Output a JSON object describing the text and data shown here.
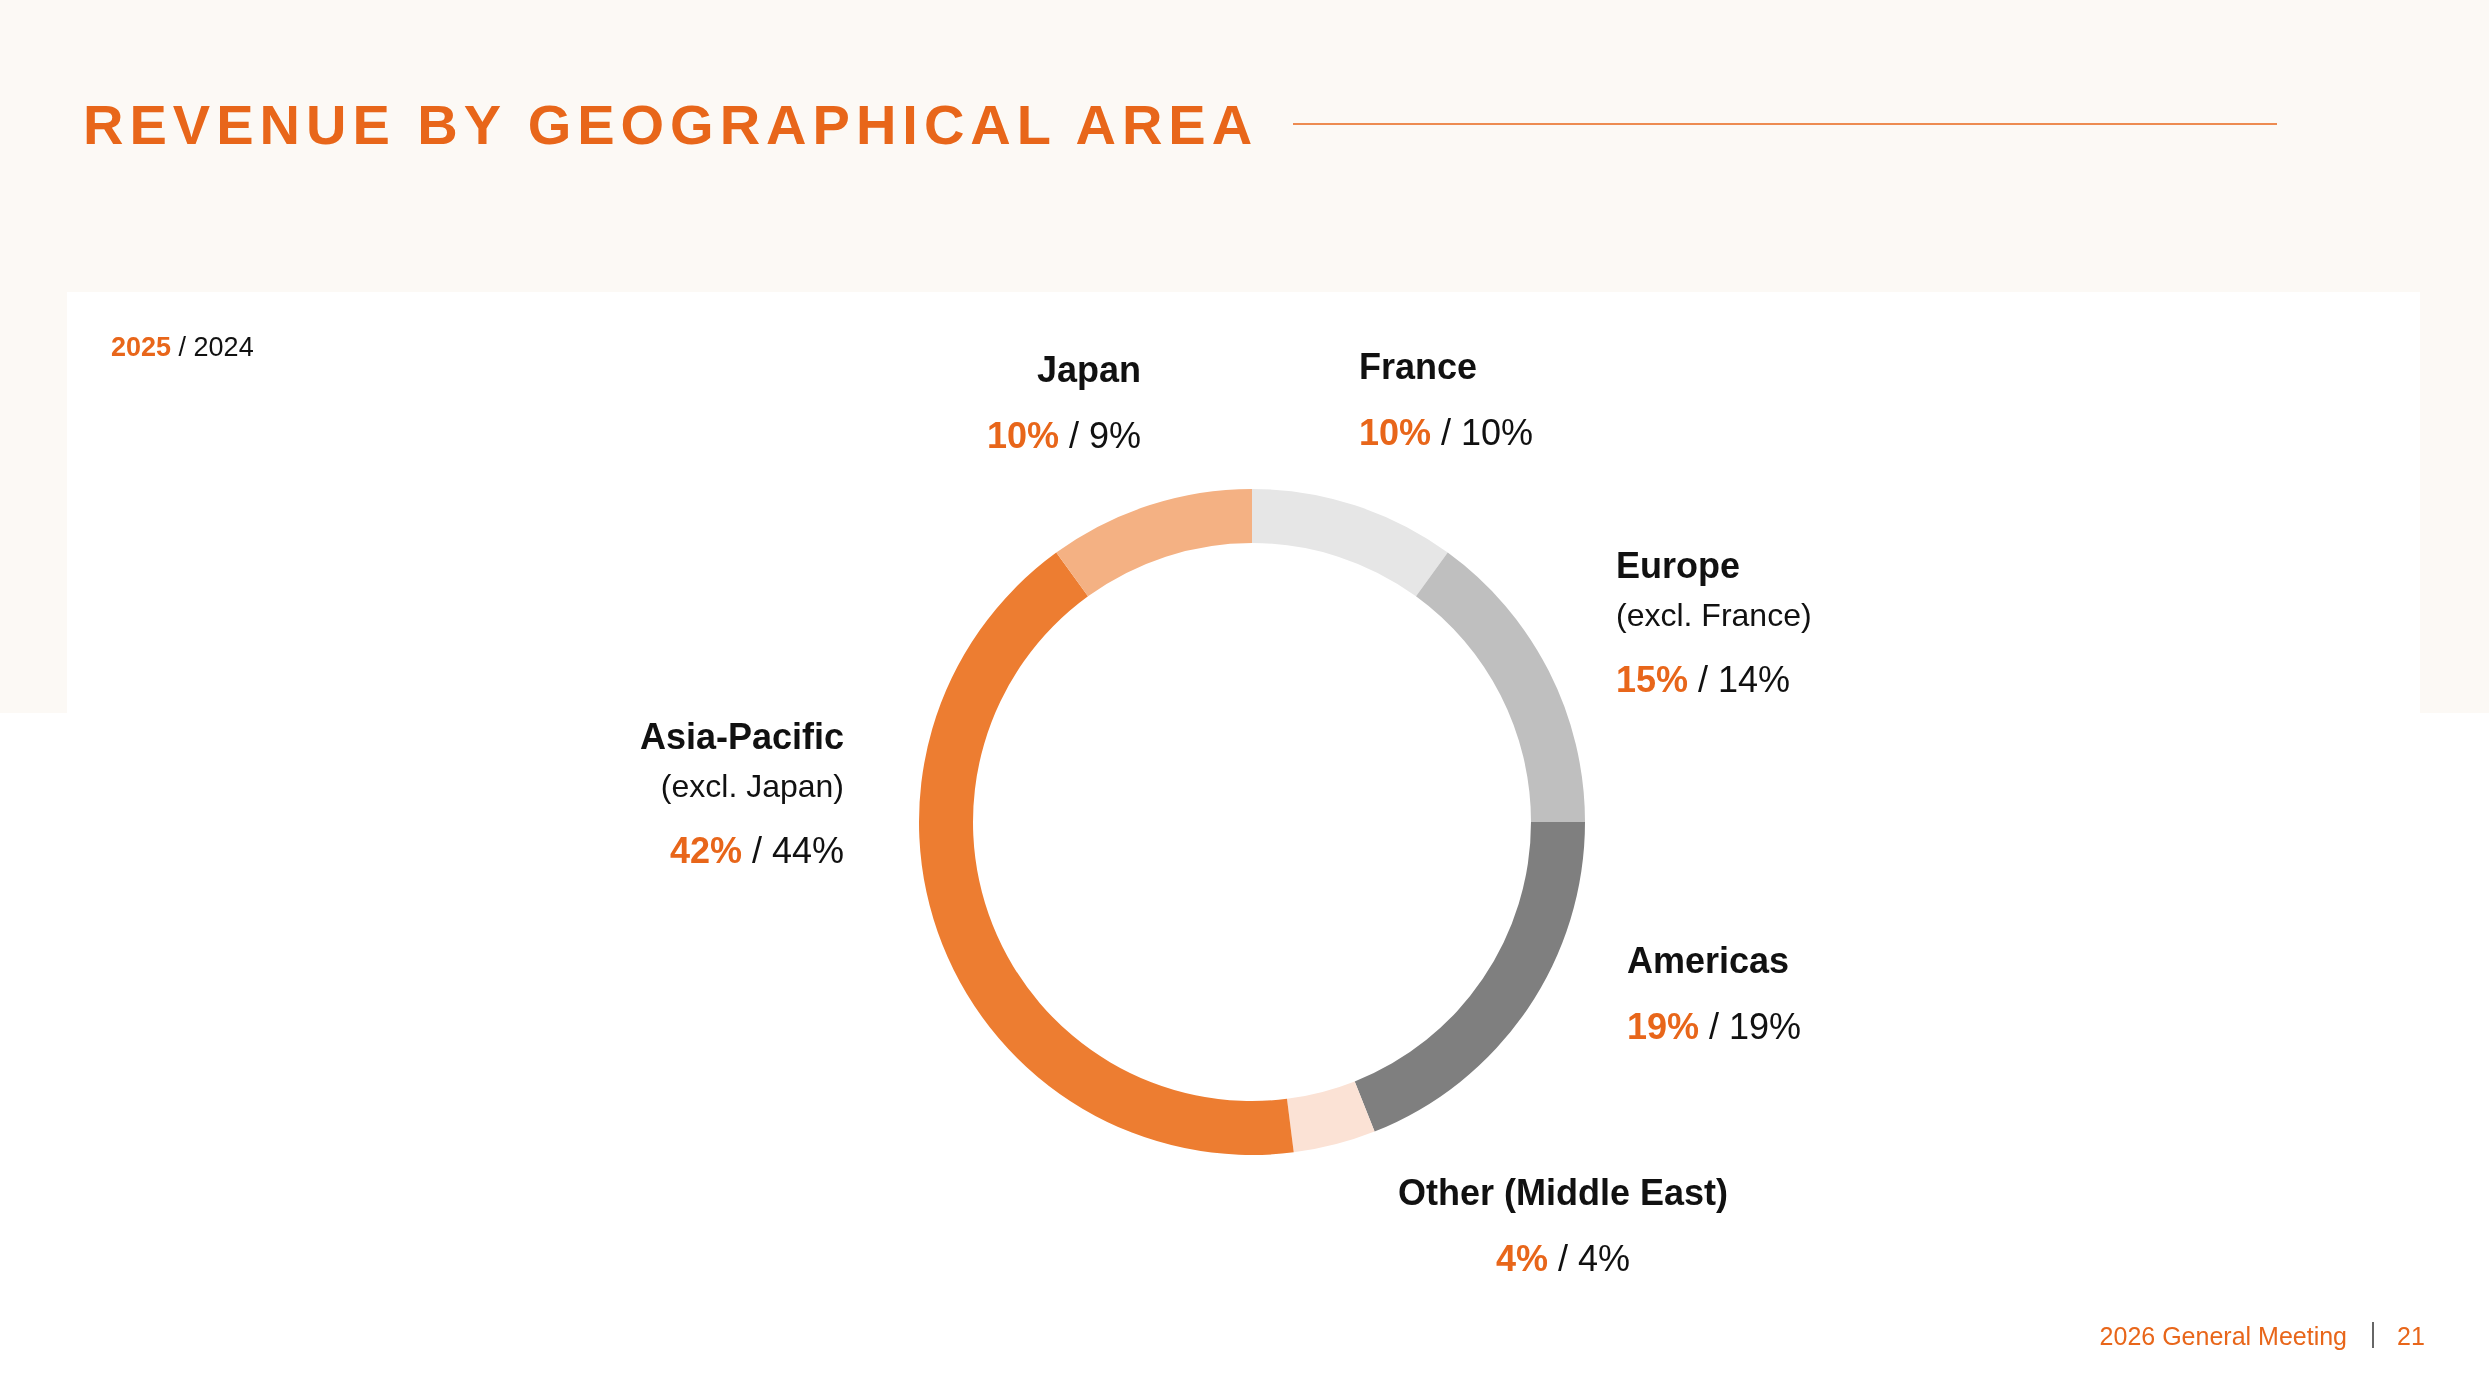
{
  "chart_data": {
    "type": "donut",
    "title": "REVENUE BY GEOGRAPHICAL AREA",
    "legend_title": "2025 / 2024",
    "categories": [
      "France",
      "Europe\n(excl. France)",
      "Americas",
      "Other (Middle East)",
      "Asia-Pacific\n(excl. Japan)",
      "Japan"
    ],
    "values": [
      10,
      15,
      19,
      4,
      42,
      10
    ],
    "colors": [
      "#e6e6e6",
      "#bfbfbf",
      "#7f7f7f",
      "#fbe2d5",
      "#ed7d31",
      "#f4b183"
    ],
    "value_labels": [
      "10% / 10%",
      "15% / 14%",
      "19% / 19%",
      "4% / 4%",
      "42% / 44%",
      "10% / 9%"
    ],
    "annotations": [
      "2026 General Meeting",
      "21"
    ]
  }
}
